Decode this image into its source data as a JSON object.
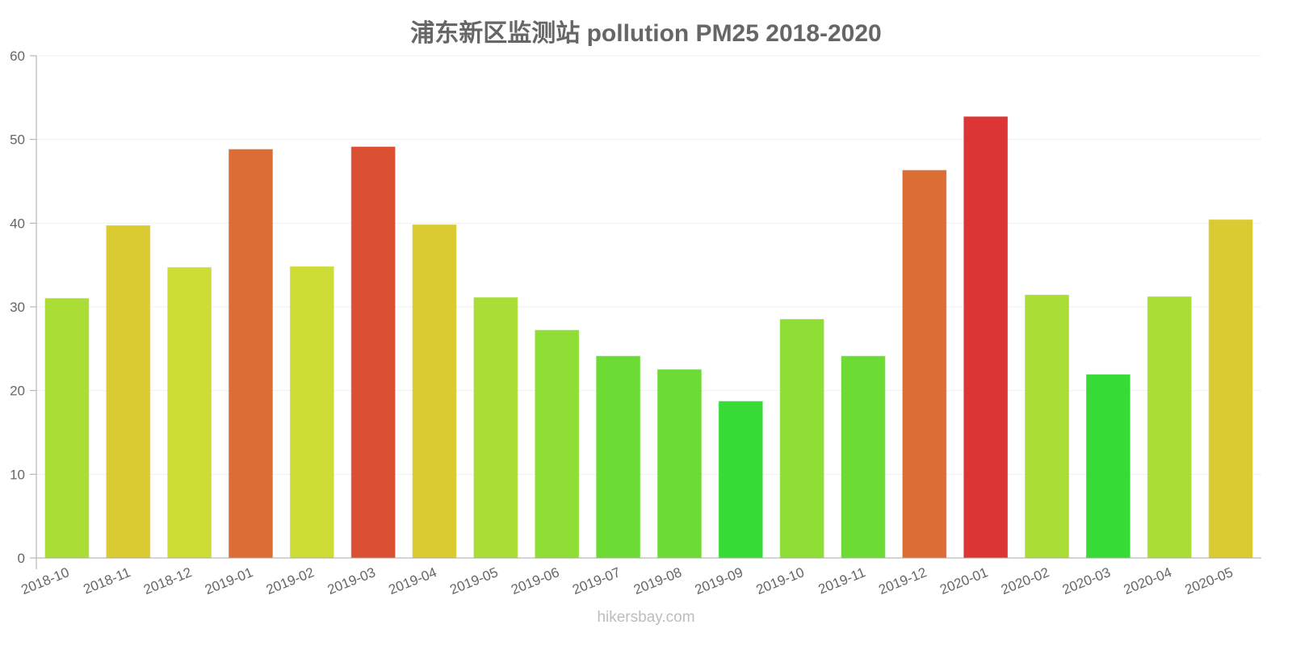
{
  "header": {
    "title": "浦东新区监测站 pollution PM25 2018-2020"
  },
  "footer": {
    "source": "hikersbay.com"
  },
  "colors": {
    "axis": "#aaaaaa",
    "grid": "#f0f0f0",
    "tick_text": "#666666"
  },
  "chart_data": {
    "type": "bar",
    "title": "浦东新区监测站 pollution PM25 2018-2020",
    "xlabel": "",
    "ylabel": "",
    "ylim": [
      0,
      60
    ],
    "yticks": [
      0,
      10,
      20,
      30,
      40,
      50,
      60
    ],
    "grid": true,
    "legend": null,
    "categories": [
      "2018-10",
      "2018-11",
      "2018-12",
      "2019-01",
      "2019-02",
      "2019-03",
      "2019-04",
      "2019-05",
      "2019-06",
      "2019-07",
      "2019-08",
      "2019-09",
      "2019-10",
      "2019-11",
      "2019-12",
      "2020-01",
      "2020-02",
      "2020-03",
      "2020-04",
      "2020-05"
    ],
    "values": [
      31.0,
      39.7,
      34.7,
      48.8,
      34.8,
      49.1,
      39.8,
      31.1,
      27.2,
      24.1,
      22.5,
      18.7,
      28.5,
      24.1,
      46.3,
      52.7,
      31.4,
      21.9,
      31.2,
      40.4
    ],
    "bar_colors": [
      "#AADD35",
      "#DBCB33",
      "#CEDD35",
      "#DC6E35",
      "#CEDD35",
      "#DB4F33",
      "#DBCB33",
      "#AADD35",
      "#8EDE35",
      "#6CDC35",
      "#6CDC35",
      "#36DC35",
      "#8EDE35",
      "#6CDC35",
      "#DC6E35",
      "#DB3535",
      "#AADD35",
      "#36DC35",
      "#AADD35",
      "#DBCB33"
    ],
    "footer": "hikersbay.com"
  }
}
